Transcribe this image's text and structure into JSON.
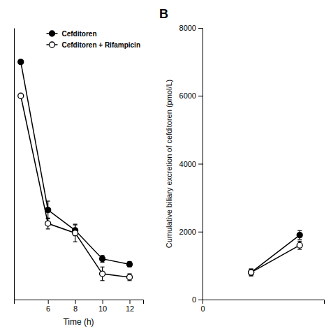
{
  "chart_data": [
    {
      "type": "line",
      "xlabel": "Time (h)",
      "x": [
        4,
        6,
        8,
        10,
        12
      ],
      "series": [
        {
          "name": "Cefditoren",
          "color": "#000000",
          "marker": "circle",
          "values": [
            3.5,
            1.32,
            1.02,
            0.6,
            0.52
          ],
          "errors": [
            0.0,
            0.13,
            0.08,
            0.05,
            0.04
          ]
        },
        {
          "name": "Cefditoren + Rifampicin",
          "color": "#000000",
          "marker": "open-circle",
          "values": [
            3.0,
            1.12,
            0.98,
            0.38,
            0.33
          ],
          "errors": [
            0.0,
            0.08,
            0.13,
            0.1,
            0.05
          ]
        }
      ],
      "xlim": [
        3.5,
        13.0
      ],
      "xticks": [
        6,
        8,
        10,
        12
      ],
      "ylim": [
        0,
        4.0
      ],
      "tick_labels": "x",
      "legend": "upper right"
    },
    {
      "type": "line",
      "annotation": "B",
      "ylabel": "Cumulative biliary excretion of cefditoren (pmol/L)",
      "x": [
        1,
        2
      ],
      "series": [
        {
          "color": "#000000",
          "marker": "circle",
          "values": [
            800,
            1900
          ],
          "errors": [
            100,
            130
          ]
        },
        {
          "color": "#000000",
          "marker": "open-circle",
          "values": [
            800,
            1600
          ],
          "errors": [
            100,
            120
          ]
        }
      ],
      "xlim": [
        0,
        2.5
      ],
      "xticks": [
        0
      ],
      "ylim": [
        0,
        8000
      ],
      "yticks": [
        0,
        2000,
        4000,
        6000,
        8000
      ]
    }
  ]
}
